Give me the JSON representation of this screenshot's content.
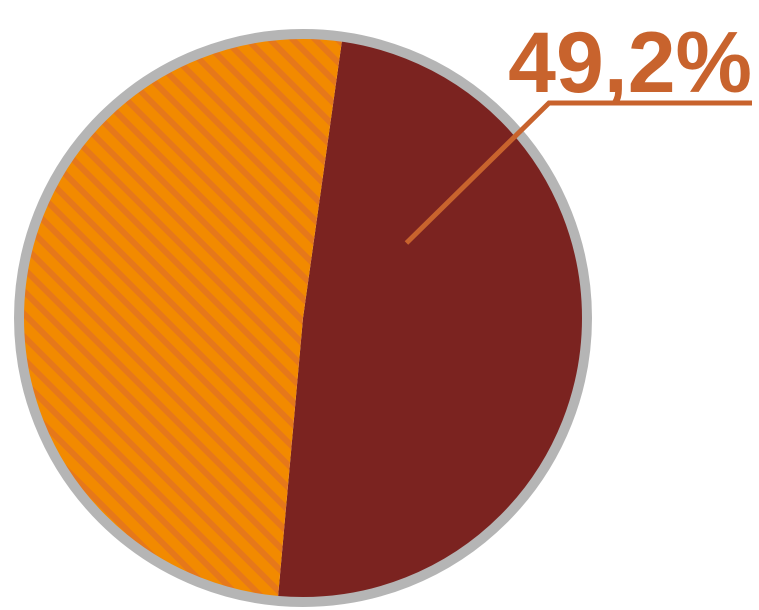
{
  "chart_data": {
    "type": "pie",
    "title": "",
    "slices": [
      {
        "value": 49.2,
        "label": "49,2%",
        "color": "#7b2320",
        "fill": "solid",
        "labeled": true
      },
      {
        "value": 50.8,
        "label": "",
        "color": "#f28a00",
        "fill": "diagonal-stripes",
        "stripe_color": "#e6781a",
        "labeled": false
      }
    ],
    "start_angle_deg": 8,
    "direction": "clockwise",
    "border_color": "#b5b5b5",
    "label_color": "#c8632d",
    "legend": "none"
  }
}
